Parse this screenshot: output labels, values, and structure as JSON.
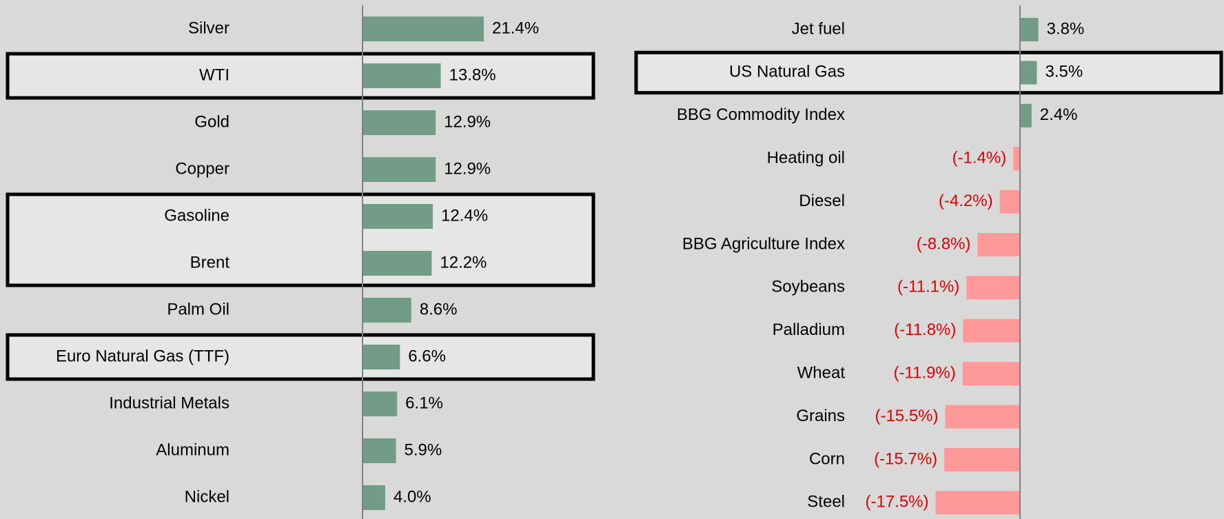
{
  "chart_data": [
    {
      "type": "bar",
      "orientation": "horizontal",
      "categories": [
        "Silver",
        "WTI",
        "Gold",
        "Copper",
        "Gasoline",
        "Brent",
        "Palm Oil",
        "Euro Natural Gas (TTF)",
        "Industrial Metals",
        "Aluminum",
        "Nickel"
      ],
      "values": [
        21.4,
        13.8,
        12.9,
        12.9,
        12.4,
        12.2,
        8.6,
        6.6,
        6.1,
        5.9,
        4.0
      ],
      "value_labels": [
        "21.4%",
        "13.8%",
        "12.9%",
        "12.9%",
        "12.4%",
        "12.2%",
        "8.6%",
        "6.6%",
        "6.1%",
        "5.9%",
        "4.0%"
      ],
      "color": "#739c88",
      "negative_color": "#ff9999",
      "negative_label_color": "#e00000",
      "xlim": [
        0,
        40
      ],
      "highlights": [
        [
          1,
          1
        ],
        [
          4,
          5
        ],
        [
          7,
          7
        ]
      ]
    },
    {
      "type": "bar",
      "orientation": "horizontal",
      "categories": [
        "Jet fuel",
        "US Natural Gas",
        "BBG Commodity Index",
        "Heating oil",
        "Diesel",
        "BBG Agriculture Index",
        "Soybeans",
        "Palladium",
        "Wheat",
        "Grains",
        "Corn",
        "Steel"
      ],
      "values": [
        3.8,
        3.5,
        2.4,
        -1.4,
        -4.2,
        -8.8,
        -11.1,
        -11.8,
        -11.9,
        -15.5,
        -15.7,
        -17.5
      ],
      "value_labels": [
        "3.8%",
        "3.5%",
        "2.4%",
        "(-1.4%)",
        "(-4.2%)",
        "(-8.8%)",
        "(-11.1%)",
        "(-11.8%)",
        "(-11.9%)",
        "(-15.5%)",
        "(-15.7%)",
        "(-17.5%)"
      ],
      "color": "#739c88",
      "negative_color": "#ff9999",
      "negative_label_color": "#e00000",
      "xlim": [
        -35,
        42
      ],
      "highlights": [
        [
          1,
          1
        ]
      ]
    }
  ]
}
